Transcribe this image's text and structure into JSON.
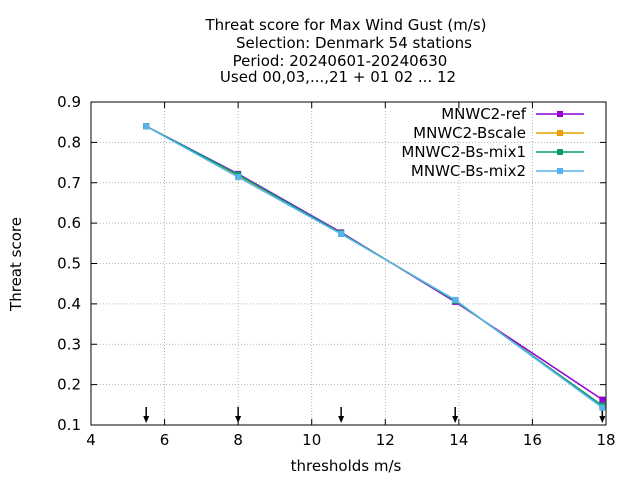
{
  "chart_data": {
    "type": "line",
    "title_lines": [
      "Threat score  for Max Wind Gust (m/s)",
      "Selection: Denmark     54 stations",
      "Period: 20240601-20240630",
      "Used 00,03,...,21 + 01 02 ... 12"
    ],
    "xlabel": "thresholds m/s",
    "ylabel": "Threat score",
    "xlim": [
      4,
      18
    ],
    "ylim": [
      0.1,
      0.9
    ],
    "xticks": [
      4,
      6,
      8,
      10,
      12,
      14,
      16,
      18
    ],
    "yticks": [
      0.1,
      0.2,
      0.3,
      0.4,
      0.5,
      0.6,
      0.7,
      0.8,
      0.9
    ],
    "grid": true,
    "legend_position": "top-right",
    "x": [
      5.5,
      8.0,
      10.8,
      13.9,
      17.9
    ],
    "series": [
      {
        "name": "MNWC2-ref",
        "color": "#9400d3",
        "values": [
          0.84,
          0.722,
          0.577,
          0.405,
          0.163
        ]
      },
      {
        "name": "MNWC2-Bscale",
        "color": "#e69f00",
        "values": [
          0.84,
          0.718,
          0.575,
          0.408,
          0.148
        ]
      },
      {
        "name": "MNWC2-Bs-mix1",
        "color": "#009e73",
        "values": [
          0.84,
          0.72,
          0.575,
          0.408,
          0.148
        ]
      },
      {
        "name": "MNWC-Bs-mix2",
        "color": "#56b4e9",
        "values": [
          0.84,
          0.714,
          0.573,
          0.41,
          0.143
        ]
      }
    ],
    "threshold_arrows": [
      5.5,
      8.0,
      10.8,
      13.9,
      17.9
    ]
  }
}
